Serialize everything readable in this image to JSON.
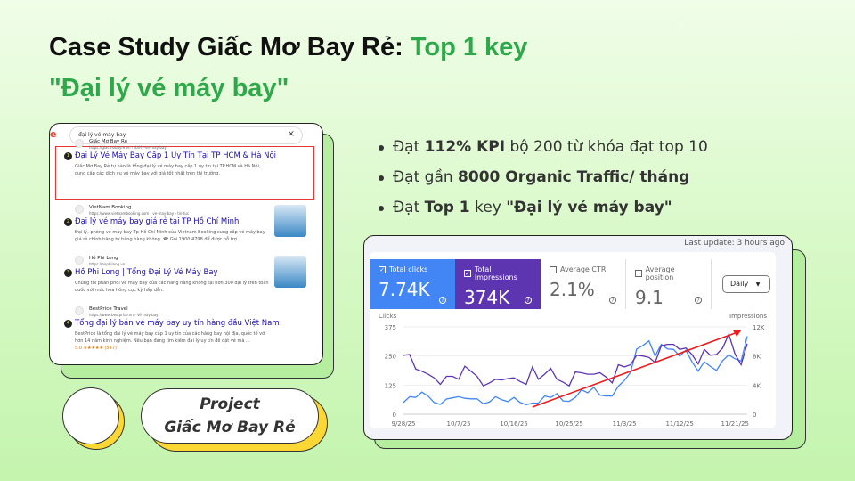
{
  "title": {
    "line1_a": "Case Study Giấc Mơ Bay Rẻ: ",
    "line1_b": "Top 1 key",
    "line2": "\"Đại lý vé máy bay\"",
    "accent": "#2ea84a"
  },
  "serp": {
    "query": "đại lý vé máy bay",
    "results": [
      {
        "rank": "1",
        "site": "Giấc Mơ Bay Rẻ",
        "url": "https://giacmobayre.vn › dai-ly-ve-may-bay",
        "title": "Đại Lý Vé Máy Bay Cấp 1 Uy Tín Tại TP HCM & Hà Nội",
        "desc": "Giấc Mơ Bay Rẻ tự hào là tổng đại lý vé máy bay cấp 1 uy tín tại TP.HCM và Hà Nội, cung cấp các dịch vụ vé máy bay với giá tốt nhất trên thị trường."
      },
      {
        "rank": "2",
        "site": "VietNam Booking",
        "url": "https://www.vietnambooking.com › ve-may-bay › tin-tuc",
        "title": "Đại lý vé máy bay giá rẻ tại TP Hồ Chí Minh",
        "desc": "Đại lý, phòng vé máy bay Tp Hồ Chí Minh của Vietnam Booking cung cấp vé máy bay giá rẻ chính hãng từ hãng hàng không. ☎ Gọi 1900 4798 để được hỗ trợ."
      },
      {
        "rank": "3",
        "site": "Hồ Phi Long",
        "url": "https://hophilong.vn",
        "title": "Hồ Phi Long | Tổng Đại Lý Vé Máy Bay",
        "desc": "Chúng tôi phân phối vé máy bay của các hãng hàng không tại hơn 300 đại lý trên toàn quốc với mức hoa hồng cực kỳ hấp dẫn."
      },
      {
        "rank": "4",
        "site": "BestPrice Travel",
        "url": "https://www.bestprice.vn › Vé máy bay",
        "title": "Tổng đại lý bán vé máy bay uy tín hàng đầu Việt Nam",
        "desc": "BestPrice là tổng đại lý vé máy bay cấp 1 uy tín của các hãng bay nội địa, quốc tế với hơn 14 năm kinh nghiệm. Nếu bạn đang tìm kiếm đại lý uy tín để đặt vé mà ...",
        "rating": "5.0 ★★★★★ (547)"
      }
    ]
  },
  "bullets": [
    {
      "a": "Đạt ",
      "b": "112% KPI",
      "c": " bộ 200 từ khóa đạt top 10"
    },
    {
      "a": "Đạt gần ",
      "b": "8000 Organic Traffic/ tháng",
      "c": ""
    },
    {
      "a": "Đạt ",
      "b": "Top 1",
      "c": " key ",
      "d": "\"Đại lý vé máy bay\""
    }
  ],
  "project": {
    "line1": "Project",
    "line2": "Giấc Mơ Bay Rẻ"
  },
  "gsc": {
    "last_update": "Last update: 3 hours ago",
    "daily": "Daily",
    "metrics": [
      {
        "label": "Total clicks",
        "value": "7.74K",
        "checked": true,
        "color": "#4285f4"
      },
      {
        "label": "Total impressions",
        "value": "374K",
        "checked": true,
        "color": "#5e35b1"
      },
      {
        "label": "Average CTR",
        "value": "2.1%",
        "checked": false
      },
      {
        "label": "Average position",
        "value": "9.1",
        "checked": false
      }
    ]
  },
  "chart_data": {
    "type": "line",
    "ylabel": "Clicks",
    "y2label": "Impressions",
    "ylim": [
      0,
      375
    ],
    "y2lim": [
      0,
      12000
    ],
    "yticks": [
      "0",
      "125",
      "250",
      "375"
    ],
    "y2ticks": [
      "0",
      "4K",
      "8K",
      "12K"
    ],
    "xticks": [
      "9/28/25",
      "10/7/25",
      "10/16/25",
      "10/25/25",
      "11/3/25",
      "11/12/25",
      "11/21/25"
    ],
    "x": [
      "9/28",
      "9/29",
      "9/30",
      "10/1",
      "10/2",
      "10/3",
      "10/4",
      "10/5",
      "10/6",
      "10/7",
      "10/8",
      "10/9",
      "10/10",
      "10/11",
      "10/12",
      "10/13",
      "10/14",
      "10/15",
      "10/16",
      "10/17",
      "10/18",
      "10/19",
      "10/20",
      "10/21",
      "10/22",
      "10/23",
      "10/24",
      "10/25",
      "10/26",
      "10/27",
      "10/28",
      "10/29",
      "10/30",
      "10/31",
      "11/1",
      "11/2",
      "11/3",
      "11/4",
      "11/5",
      "11/6",
      "11/7",
      "11/8",
      "11/9",
      "11/10",
      "11/11",
      "11/12",
      "11/13",
      "11/14",
      "11/15",
      "11/16",
      "11/17",
      "11/18",
      "11/19",
      "11/20",
      "11/21",
      "11/22",
      "11/23"
    ],
    "series": [
      {
        "name": "Clicks",
        "color": "#4285f4",
        "axis": "left",
        "values": [
          50,
          75,
          72,
          95,
          78,
          50,
          42,
          65,
          70,
          75,
          68,
          66,
          66,
          45,
          52,
          75,
          62,
          54,
          72,
          50,
          40,
          48,
          48,
          78,
          72,
          88,
          57,
          55,
          72,
          105,
          92,
          115,
          82,
          78,
          78,
          120,
          145,
          180,
          280,
          295,
          315,
          250,
          300,
          280,
          278,
          250,
          275,
          225,
          185,
          225,
          205,
          188,
          230,
          255,
          238,
          228,
          335
        ]
      },
      {
        "name": "Impressions",
        "color": "#5e35b1",
        "axis": "right",
        "values": [
          8100,
          8200,
          6200,
          5900,
          5500,
          5000,
          4100,
          5200,
          5200,
          4800,
          6600,
          5900,
          5200,
          3900,
          4300,
          4800,
          4700,
          4900,
          5000,
          4500,
          4100,
          6500,
          4800,
          5500,
          6300,
          4800,
          4400,
          3900,
          5800,
          5700,
          5500,
          5500,
          5700,
          5100,
          4300,
          6800,
          6500,
          6800,
          8100,
          8000,
          7800,
          7100,
          9400,
          9600,
          9600,
          8900,
          9100,
          8200,
          6900,
          8900,
          8100,
          8200,
          9100,
          11000,
          8300,
          6800,
          9700
        ]
      }
    ],
    "annotation": {
      "type": "trend-arrow",
      "color": "#ee1c1c"
    },
    "grid": true,
    "legend": "none"
  }
}
